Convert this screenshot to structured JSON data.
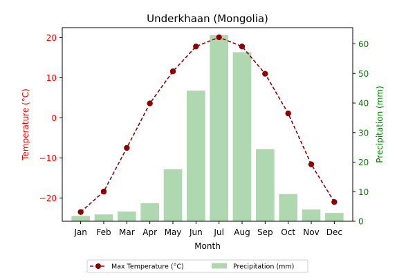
{
  "chart_data": {
    "type": "bar+line",
    "title": "Underkhaan (Mongolia)",
    "xlabel": "Month",
    "categories": [
      "Jan",
      "Feb",
      "Mar",
      "Apr",
      "May",
      "Jun",
      "Jul",
      "Aug",
      "Sep",
      "Oct",
      "Nov",
      "Dec"
    ],
    "left_axis": {
      "label": "Temperature (°C)",
      "color": "#ff0000",
      "ylim": [
        -25.8,
        22.5
      ],
      "ticks": [
        -20,
        -10,
        0,
        10,
        20
      ],
      "tick_labels": [
        "−20",
        "−10",
        "0",
        "10",
        "20"
      ]
    },
    "right_axis": {
      "label": "Precipitation (mm)",
      "color": "#008000",
      "ylim": [
        0,
        65.5
      ],
      "ticks": [
        0,
        10,
        20,
        30,
        40,
        50,
        60
      ],
      "tick_labels": [
        "0",
        "10",
        "20",
        "30",
        "40",
        "50",
        "60"
      ]
    },
    "series": [
      {
        "name": "Max Temperature (°C)",
        "kind": "line",
        "axis": "left",
        "color": "#8b0000",
        "line_style": "dashed",
        "marker": "circle",
        "values": [
          -23.5,
          -18.4,
          -7.5,
          3.6,
          11.6,
          17.8,
          20.1,
          17.8,
          11.0,
          1.1,
          -11.6,
          -21.0
        ]
      },
      {
        "name": "Precipitation (mm)",
        "kind": "bar",
        "axis": "right",
        "color": "#b0d8b0",
        "values": [
          1.8,
          2.3,
          3.3,
          6.1,
          17.6,
          44.2,
          63.0,
          57.2,
          24.4,
          9.2,
          4.0,
          2.8
        ]
      }
    ],
    "legend": {
      "placement": "bottom-center",
      "columns": 2
    },
    "grid": false
  }
}
